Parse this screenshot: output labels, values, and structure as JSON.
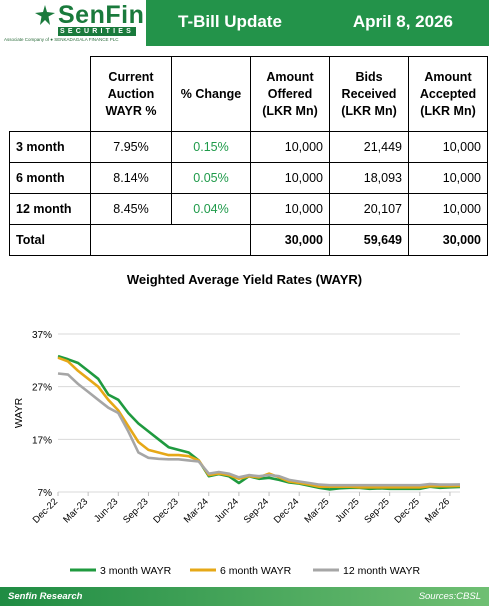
{
  "header": {
    "logo_text": "SenFin",
    "logo_sub": "SECURITIES",
    "logo_assoc": "Associate Company of ● SENKADAGALA FINANCE PLC",
    "title": "T-Bill Update",
    "date": "April 8, 2026",
    "brand_color": "#23934a"
  },
  "table": {
    "headers": [
      "Current Auction WAYR %",
      "% Change",
      "Amount Offered (LKR Mn)",
      "Bids Received (LKR Mn)",
      "Amount Accepted (LKR Mn)"
    ],
    "rows": [
      {
        "tenor": "3 month",
        "wayr": "7.95%",
        "change": "0.15%",
        "offered": "10,000",
        "bids": "21,449",
        "accepted": "10,000"
      },
      {
        "tenor": "6 month",
        "wayr": "8.14%",
        "change": "0.05%",
        "offered": "10,000",
        "bids": "18,093",
        "accepted": "10,000"
      },
      {
        "tenor": "12 month",
        "wayr": "8.45%",
        "change": "0.04%",
        "offered": "10,000",
        "bids": "20,107",
        "accepted": "10,000"
      }
    ],
    "total": {
      "label": "Total",
      "offered": "30,000",
      "bids": "59,649",
      "accepted": "30,000"
    }
  },
  "chart_data": {
    "type": "line",
    "title": "Weighted Average Yield Rates (WAYR)",
    "ylabel": "WAYR",
    "xlabel": "",
    "ylim": [
      7,
      37
    ],
    "yticks": [
      "7%",
      "17%",
      "27%",
      "37%"
    ],
    "ytick_values": [
      7,
      17,
      27,
      37
    ],
    "xlim": [
      "2022-12",
      "2026-04"
    ],
    "xticks": [
      "Dec-22",
      "Mar-23",
      "Jun-23",
      "Sep-23",
      "Dec-23",
      "Mar-24",
      "Jun-24",
      "Sep-24",
      "Dec-24",
      "Mar-25",
      "Jun-25",
      "Sep-25",
      "Dec-25",
      "Mar-26"
    ],
    "xtick_values": [
      "2022-12",
      "2023-03",
      "2023-06",
      "2023-09",
      "2023-12",
      "2024-03",
      "2024-06",
      "2024-09",
      "2024-12",
      "2025-03",
      "2025-06",
      "2025-09",
      "2025-12",
      "2026-03"
    ],
    "grid": "horizontal",
    "legend": "bottom",
    "series": [
      {
        "name": "3 month WAYR",
        "color": "#1f9a3f",
        "points": [
          [
            "2022-12",
            32.8
          ],
          [
            "2023-01",
            32.2
          ],
          [
            "2023-02",
            31.5
          ],
          [
            "2023-03",
            30.0
          ],
          [
            "2023-04",
            28.5
          ],
          [
            "2023-05",
            25.5
          ],
          [
            "2023-06",
            24.5
          ],
          [
            "2023-07",
            22.0
          ],
          [
            "2023-08",
            20.0
          ],
          [
            "2023-09",
            18.5
          ],
          [
            "2023-10",
            17.0
          ],
          [
            "2023-11",
            15.5
          ],
          [
            "2023-12",
            15.0
          ],
          [
            "2024-01",
            14.5
          ],
          [
            "2024-02",
            13.0
          ],
          [
            "2024-03",
            10.0
          ],
          [
            "2024-04",
            10.4
          ],
          [
            "2024-05",
            10.0
          ],
          [
            "2024-06",
            8.7
          ],
          [
            "2024-07",
            10.0
          ],
          [
            "2024-08",
            9.5
          ],
          [
            "2024-09",
            9.7
          ],
          [
            "2024-10",
            9.3
          ],
          [
            "2024-11",
            8.8
          ],
          [
            "2024-12",
            8.6
          ],
          [
            "2025-01",
            8.2
          ],
          [
            "2025-02",
            7.8
          ],
          [
            "2025-03",
            7.5
          ],
          [
            "2025-04",
            7.7
          ],
          [
            "2025-05",
            7.8
          ],
          [
            "2025-06",
            7.8
          ],
          [
            "2025-07",
            7.6
          ],
          [
            "2025-08",
            7.7
          ],
          [
            "2025-09",
            7.6
          ],
          [
            "2025-10",
            7.6
          ],
          [
            "2025-11",
            7.6
          ],
          [
            "2025-12",
            7.6
          ],
          [
            "2026-01",
            8.0
          ],
          [
            "2026-02",
            7.8
          ],
          [
            "2026-03",
            7.9
          ],
          [
            "2026-04",
            7.95
          ]
        ]
      },
      {
        "name": "6 month WAYR",
        "color": "#e6a817",
        "points": [
          [
            "2022-12",
            32.5
          ],
          [
            "2023-01",
            31.8
          ],
          [
            "2023-02",
            30.0
          ],
          [
            "2023-03",
            28.5
          ],
          [
            "2023-04",
            27.0
          ],
          [
            "2023-05",
            24.5
          ],
          [
            "2023-06",
            22.5
          ],
          [
            "2023-07",
            19.5
          ],
          [
            "2023-08",
            16.5
          ],
          [
            "2023-09",
            15.0
          ],
          [
            "2023-10",
            14.5
          ],
          [
            "2023-11",
            14.0
          ],
          [
            "2023-12",
            14.0
          ],
          [
            "2024-01",
            13.8
          ],
          [
            "2024-02",
            13.0
          ],
          [
            "2024-03",
            10.2
          ],
          [
            "2024-04",
            10.5
          ],
          [
            "2024-05",
            10.2
          ],
          [
            "2024-06",
            9.5
          ],
          [
            "2024-07",
            10.0
          ],
          [
            "2024-08",
            9.8
          ],
          [
            "2024-09",
            10.5
          ],
          [
            "2024-10",
            9.8
          ],
          [
            "2024-11",
            9.0
          ],
          [
            "2024-12",
            8.7
          ],
          [
            "2025-01",
            8.4
          ],
          [
            "2025-02",
            8.0
          ],
          [
            "2025-03",
            8.0
          ],
          [
            "2025-04",
            8.0
          ],
          [
            "2025-05",
            8.0
          ],
          [
            "2025-06",
            7.9
          ],
          [
            "2025-07",
            7.9
          ],
          [
            "2025-08",
            7.9
          ],
          [
            "2025-09",
            7.9
          ],
          [
            "2025-10",
            7.9
          ],
          [
            "2025-11",
            7.9
          ],
          [
            "2025-12",
            7.9
          ],
          [
            "2026-01",
            8.1
          ],
          [
            "2026-02",
            8.1
          ],
          [
            "2026-03",
            8.1
          ],
          [
            "2026-04",
            8.14
          ]
        ]
      },
      {
        "name": "12 month WAYR",
        "color": "#a6a6a6",
        "points": [
          [
            "2022-12",
            29.5
          ],
          [
            "2023-01",
            29.3
          ],
          [
            "2023-02",
            27.5
          ],
          [
            "2023-03",
            26.0
          ],
          [
            "2023-04",
            24.5
          ],
          [
            "2023-05",
            23.0
          ],
          [
            "2023-06",
            22.0
          ],
          [
            "2023-07",
            18.5
          ],
          [
            "2023-08",
            14.5
          ],
          [
            "2023-09",
            13.5
          ],
          [
            "2023-10",
            13.3
          ],
          [
            "2023-11",
            13.2
          ],
          [
            "2023-12",
            13.2
          ],
          [
            "2024-01",
            13.0
          ],
          [
            "2024-02",
            12.8
          ],
          [
            "2024-03",
            10.5
          ],
          [
            "2024-04",
            10.8
          ],
          [
            "2024-05",
            10.5
          ],
          [
            "2024-06",
            9.8
          ],
          [
            "2024-07",
            10.2
          ],
          [
            "2024-08",
            10.0
          ],
          [
            "2024-09",
            10.2
          ],
          [
            "2024-10",
            10.0
          ],
          [
            "2024-11",
            9.3
          ],
          [
            "2024-12",
            9.0
          ],
          [
            "2025-01",
            8.7
          ],
          [
            "2025-02",
            8.4
          ],
          [
            "2025-03",
            8.3
          ],
          [
            "2025-04",
            8.3
          ],
          [
            "2025-05",
            8.3
          ],
          [
            "2025-06",
            8.3
          ],
          [
            "2025-07",
            8.3
          ],
          [
            "2025-08",
            8.3
          ],
          [
            "2025-09",
            8.3
          ],
          [
            "2025-10",
            8.3
          ],
          [
            "2025-11",
            8.3
          ],
          [
            "2025-12",
            8.3
          ],
          [
            "2026-01",
            8.5
          ],
          [
            "2026-02",
            8.4
          ],
          [
            "2026-03",
            8.4
          ],
          [
            "2026-04",
            8.45
          ]
        ]
      }
    ]
  },
  "footer": {
    "left": "Senfin Research",
    "right": "Sources:CBSL"
  }
}
